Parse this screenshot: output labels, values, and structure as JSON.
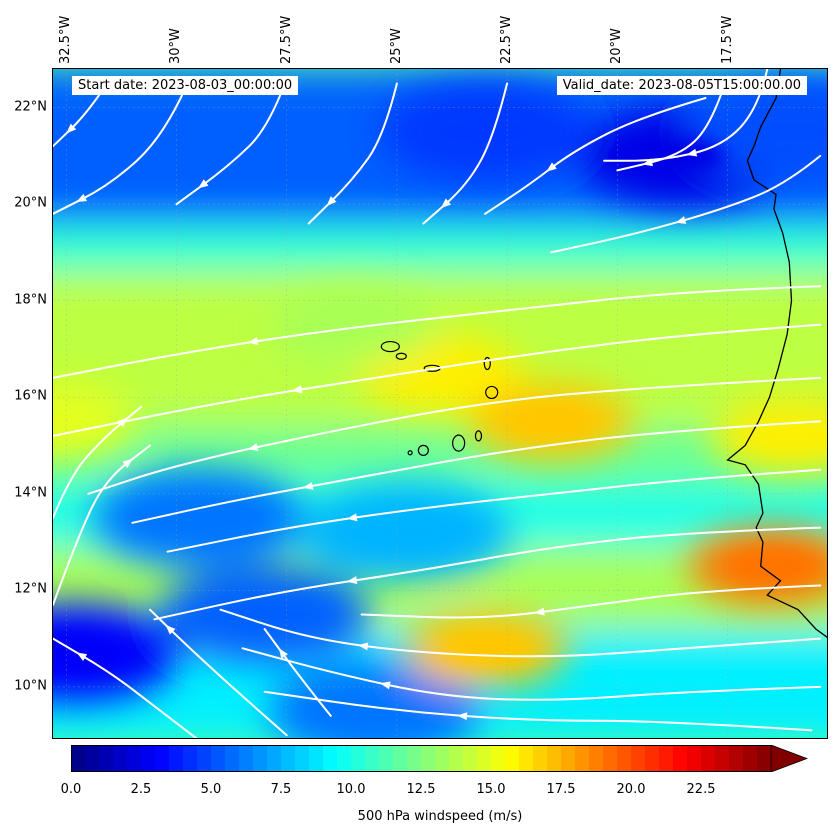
{
  "header": {
    "start_date": "Start date: 2023-08-03_00:00:00",
    "valid_date": "Valid_date: 2023-08-05T15:00:00.00"
  },
  "map": {
    "lon_range": [
      -32.8,
      -15.2
    ],
    "lat_range": [
      8.9,
      22.8
    ],
    "lon_labels": [
      {
        "lon": -32.5,
        "label": "32.5°W"
      },
      {
        "lon": -30,
        "label": "30°W"
      },
      {
        "lon": -27.5,
        "label": "27.5°W"
      },
      {
        "lon": -25,
        "label": "25°W"
      },
      {
        "lon": -22.5,
        "label": "22.5°W"
      },
      {
        "lon": -20,
        "label": "20°W"
      },
      {
        "lon": -17.5,
        "label": "17.5°W"
      }
    ],
    "lat_labels": [
      {
        "lat": 22,
        "label": "22°N"
      },
      {
        "lat": 20,
        "label": "20°N"
      },
      {
        "lat": 18,
        "label": "18°N"
      },
      {
        "lat": 16,
        "label": "16°N"
      },
      {
        "lat": 14,
        "label": "14°N"
      },
      {
        "lat": 12,
        "label": "12°N"
      },
      {
        "lat": 10,
        "label": "10°N"
      }
    ],
    "streamline_color": "#ffffff",
    "coastline_color": "#000000"
  },
  "chart_data": {
    "type": "heatmap",
    "variable": "500 hPa windspeed",
    "units": "m/s",
    "colormap": "jet",
    "vmin": 0,
    "vmax": 25,
    "extend": "max",
    "features": [
      {
        "lon": -18.5,
        "lat": 21.0,
        "speed": 2.5
      },
      {
        "lon": -23.0,
        "lat": 21.5,
        "speed": 4.5
      },
      {
        "lon": -16.0,
        "lat": 21.5,
        "speed": 5.0
      },
      {
        "lon": -32.3,
        "lat": 10.7,
        "speed": 3.0
      },
      {
        "lon": -29.5,
        "lat": 13.5,
        "speed": 6.0
      },
      {
        "lon": -28.0,
        "lat": 11.5,
        "speed": 5.5
      },
      {
        "lon": -25.5,
        "lat": 9.5,
        "speed": 6.0
      },
      {
        "lon": -24.8,
        "lat": 13.2,
        "speed": 7.5
      },
      {
        "lon": -24.0,
        "lat": 16.5,
        "speed": 16.0
      },
      {
        "lon": -21.5,
        "lat": 15.5,
        "speed": 17.0
      },
      {
        "lon": -16.5,
        "lat": 12.5,
        "speed": 19.0
      },
      {
        "lon": -23.0,
        "lat": 10.8,
        "speed": 17.0
      },
      {
        "lon": -26.0,
        "lat": 17.5,
        "speed": 13.5
      },
      {
        "lon": -16.0,
        "lat": 15.2,
        "speed": 16.0
      },
      {
        "lon": -32.8,
        "lat": 15.5,
        "speed": 15.0
      }
    ],
    "colorbar": {
      "label": "500 hPa windspeed (m/s)",
      "ticks": [
        0,
        2.5,
        5,
        7.5,
        10,
        12.5,
        15,
        17.5,
        20,
        22.5
      ],
      "tick_labels": [
        "0.0",
        "2.5",
        "5.0",
        "7.5",
        "10.0",
        "12.5",
        "15.0",
        "17.5",
        "20.0",
        "22.5"
      ]
    }
  }
}
